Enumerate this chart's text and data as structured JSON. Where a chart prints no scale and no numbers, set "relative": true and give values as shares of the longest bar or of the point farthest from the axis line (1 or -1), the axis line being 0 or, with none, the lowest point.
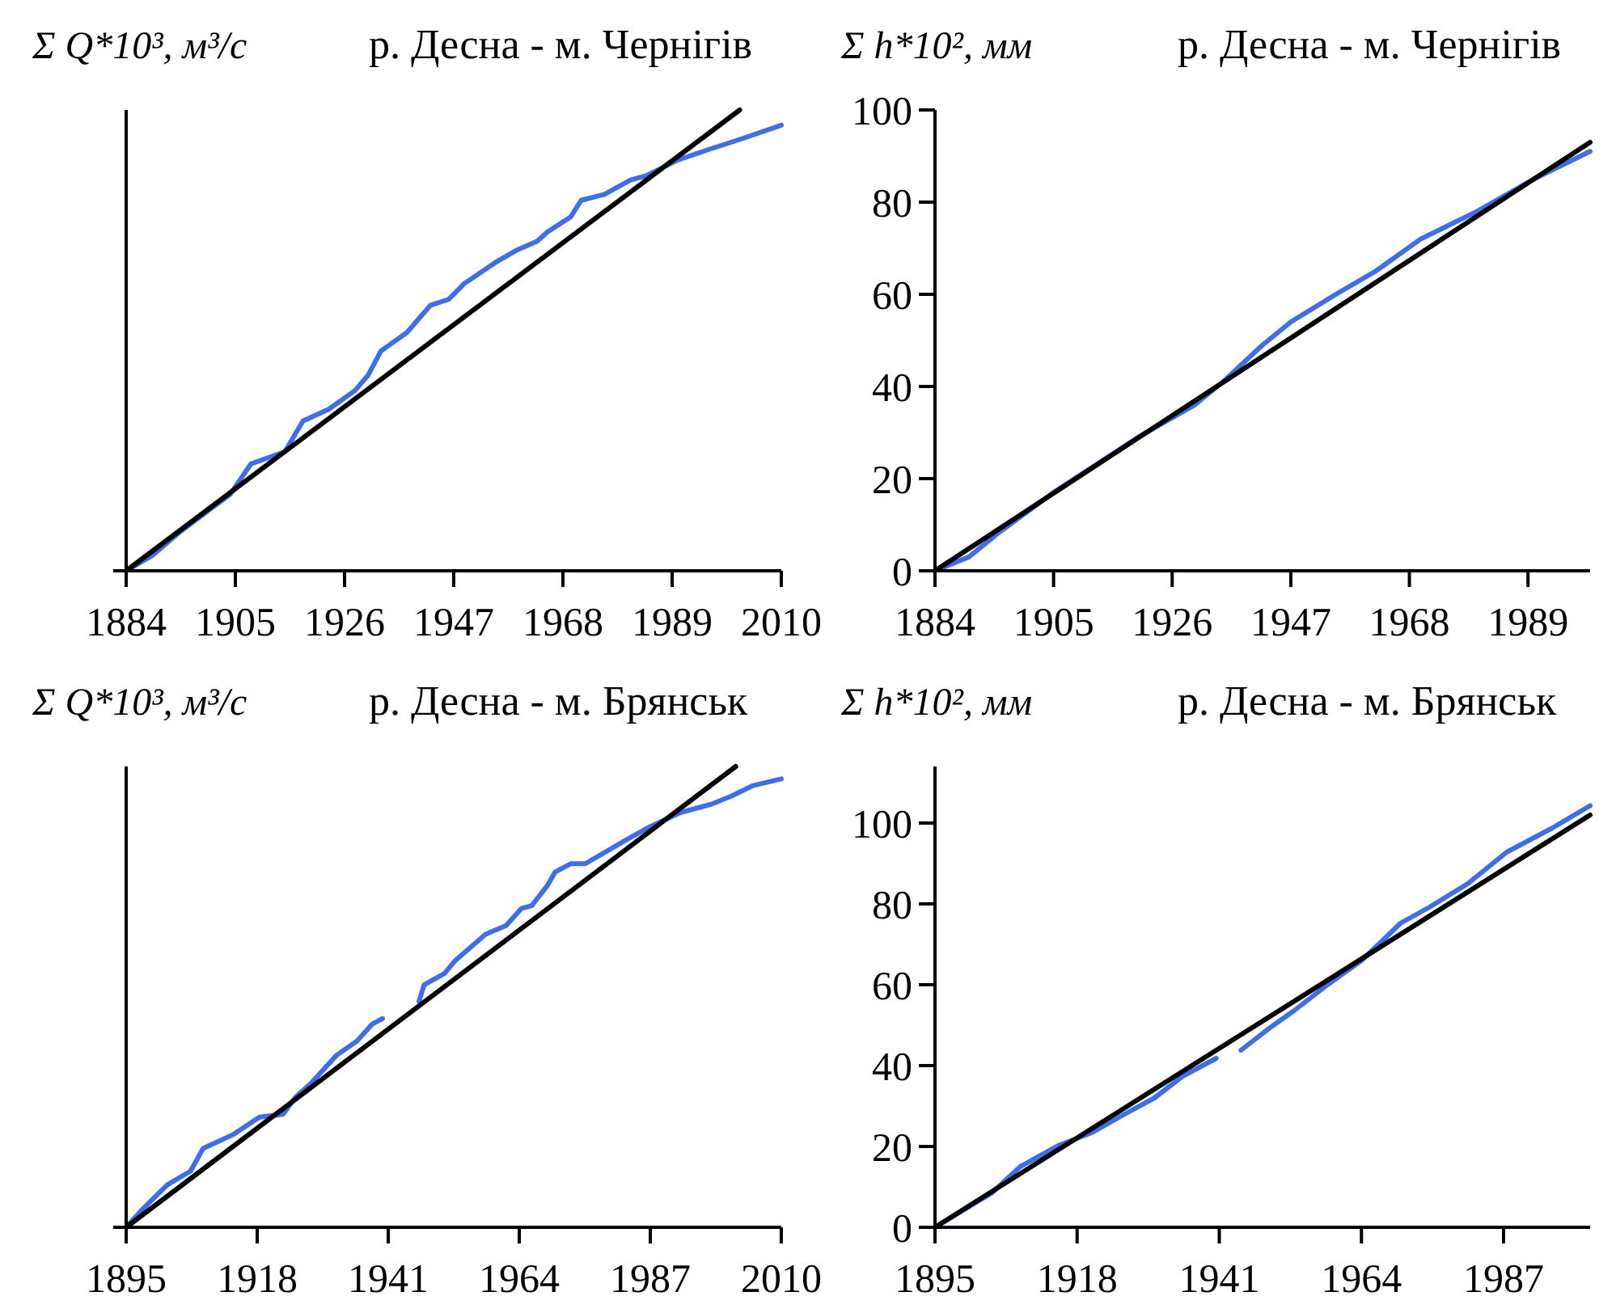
{
  "chart_data": [
    {
      "type": "line",
      "title": "р. Десна - м. Чернігів",
      "ylabel": "Σ Q*10³, м³/с",
      "relative": true,
      "xlim": [
        1884,
        2010
      ],
      "xticks": [
        1884,
        1905,
        1926,
        1947,
        1968,
        1989,
        2010
      ],
      "series": [
        {
          "color": "#3e6ee8",
          "x": [
            1884,
            1889,
            1894.5,
            1904,
            1908,
            1914.5,
            1918,
            1923,
            1928,
            1930.5,
            1933,
            1938,
            1942.5,
            1946,
            1949,
            1955,
            1959,
            1963,
            1965,
            1969.5,
            1971.5,
            1976,
            1981,
            1984,
            1990,
            1996,
            2002,
            2010
          ],
          "values": [
            0,
            0.033,
            0.086,
            0.166,
            0.232,
            0.258,
            0.325,
            0.351,
            0.391,
            0.424,
            0.477,
            0.517,
            0.576,
            0.589,
            0.623,
            0.669,
            0.695,
            0.715,
            0.735,
            0.768,
            0.804,
            0.817,
            0.848,
            0.857,
            0.891,
            0.914,
            0.936,
            0.967
          ]
        },
        {
          "color": "#000000",
          "x": [
            1884,
            2002
          ],
          "values": [
            0,
            1
          ]
        }
      ]
    },
    {
      "type": "line",
      "title": "р. Десна - м. Чернігів",
      "ylabel": "Σ h*10², мм",
      "xlim": [
        1884,
        2000
      ],
      "xticks": [
        1884,
        1905,
        1926,
        1947,
        1968,
        1989
      ],
      "ylim": [
        0,
        100
      ],
      "yticks": [
        0,
        20,
        40,
        60,
        80,
        100
      ],
      "series": [
        {
          "color": "#3e6ee8",
          "x": [
            1884,
            1890,
            1895,
            1905,
            1915,
            1920,
            1930,
            1935,
            1942,
            1947,
            1955,
            1962,
            1970,
            1975,
            1980,
            1990,
            2000
          ],
          "values": [
            0,
            3,
            8,
            17,
            25,
            29,
            36,
            41,
            49,
            54,
            60,
            65,
            72,
            75,
            78,
            85,
            91
          ]
        },
        {
          "color": "#000000",
          "x": [
            1884,
            2000
          ],
          "values": [
            0,
            93
          ]
        }
      ]
    },
    {
      "type": "line",
      "title": "р. Десна - м. Брянськ",
      "ylabel": "Σ Q*10³, м³/с",
      "relative": true,
      "xlim": [
        1895,
        2010
      ],
      "xticks": [
        1895,
        1918,
        1941,
        1964,
        1987,
        2010
      ],
      "series": [
        {
          "color": "#3e6ee8",
          "x": [
            1895,
            1897.7,
            1902.2,
            1906.3,
            1908.5,
            1913.9,
            1918.4,
            1922.5,
            1924.7,
            1927.4,
            1931.9,
            1935.5,
            1938.2,
            1940
          ],
          "values": [
            0,
            0.037,
            0.092,
            0.122,
            0.171,
            0.202,
            0.239,
            0.245,
            0.282,
            0.312,
            0.373,
            0.404,
            0.441,
            0.453
          ]
        },
        {
          "color": "#3e6ee8",
          "x": [
            1946.4,
            1947.3,
            1950.9,
            1952.7,
            1958.1,
            1961.7,
            1964.4,
            1966.2,
            1968.9,
            1970.3,
            1973,
            1975.6,
            1982.4,
            1986.9,
            1992.3,
            1997.7,
            2001.3,
            2004.9,
            2010
          ],
          "values": [
            0.49,
            0.526,
            0.551,
            0.578,
            0.636,
            0.655,
            0.692,
            0.698,
            0.741,
            0.771,
            0.789,
            0.789,
            0.838,
            0.869,
            0.9,
            0.918,
            0.936,
            0.958,
            0.973
          ]
        },
        {
          "color": "#000000",
          "x": [
            1895,
            2002
          ],
          "values": [
            0,
            1
          ]
        }
      ]
    },
    {
      "type": "line",
      "title": "р. Десна - м. Брянськ",
      "ylabel": "Σ h*10², мм",
      "xlim": [
        1895,
        2001
      ],
      "xticks": [
        1895,
        1918,
        1941,
        1964,
        1987
      ],
      "ylim": [
        0,
        114
      ],
      "yticks": [
        0,
        20,
        40,
        60,
        80,
        100
      ],
      "series": [
        {
          "color": "#3e6ee8",
          "x": [
            1895,
            1904.2,
            1908.8,
            1915.1,
            1920.5,
            1925.1,
            1930.5,
            1935,
            1940.5
          ],
          "values": [
            0,
            8.5,
            15,
            20.3,
            23.5,
            27.5,
            32,
            37.3,
            41.8
          ]
        },
        {
          "color": "#3e6ee8",
          "x": [
            1944.5,
            1949.5,
            1953.1,
            1958.6,
            1964,
            1967.6,
            1970.3,
            1974.9,
            1981.2,
            1987.5,
            1994.8,
            2001
          ],
          "values": [
            43.8,
            49.7,
            53.6,
            60.1,
            66,
            71.2,
            75.2,
            79.1,
            85,
            92.8,
            98.7,
            104.3
          ]
        },
        {
          "color": "#000000",
          "x": [
            1895,
            2001
          ],
          "values": [
            0,
            102
          ]
        }
      ]
    }
  ]
}
